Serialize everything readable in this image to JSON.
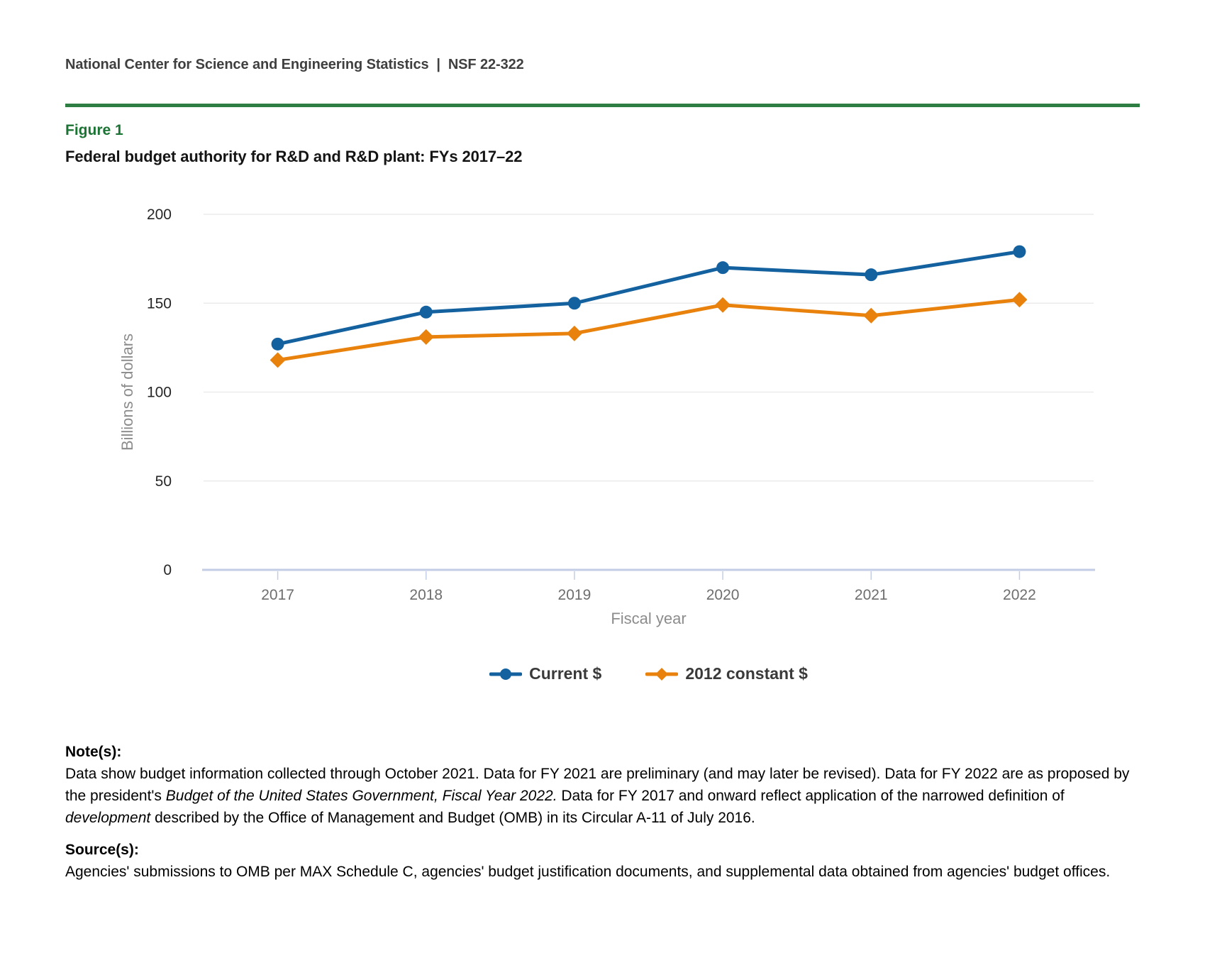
{
  "header": {
    "text": "National Center for Science and Engineering Statistics  |  NSF 22-322"
  },
  "figure": {
    "label": "Figure 1",
    "title": "Federal budget authority for R&D and R&D plant: FYs 2017–22"
  },
  "chart_data": {
    "type": "line",
    "title": "Federal budget authority for R&D and R&D plant: FYs 2017–22",
    "xlabel": "Fiscal year",
    "ylabel": "Billions of dollars",
    "categories": [
      "2017",
      "2018",
      "2019",
      "2020",
      "2021",
      "2022"
    ],
    "ylim": [
      0,
      200
    ],
    "yticks": [
      0,
      50,
      100,
      150,
      200
    ],
    "grid": true,
    "legend_position": "bottom",
    "series": [
      {
        "name": "Current $",
        "marker": "circle",
        "color": "#14619f",
        "values": [
          127,
          145,
          150,
          170,
          166,
          179
        ]
      },
      {
        "name": "2012 constant $",
        "marker": "diamond",
        "color": "#e8820d",
        "values": [
          118,
          131,
          133,
          149,
          143,
          152
        ]
      }
    ]
  },
  "notes": {
    "heading": "Note(s):",
    "segments": [
      {
        "text": "Data show budget information collected through October 2021. Data for FY 2021 are preliminary (and may later be revised). Data for FY 2022 are as proposed by the president's ",
        "italic": false
      },
      {
        "text": "Budget of the United States Government, Fiscal Year 2022.",
        "italic": true
      },
      {
        "text": " Data for FY 2017 and onward reflect application of the narrowed definition of ",
        "italic": false
      },
      {
        "text": "development",
        "italic": true
      },
      {
        "text": " described by the Office of Management and Budget (OMB) in its Circular A-11 of July 2016.",
        "italic": false
      }
    ]
  },
  "sources": {
    "heading": "Source(s):",
    "text": "Agencies' submissions to OMB per MAX Schedule C, agencies' budget justification documents, and supplemental data obtained from agencies' budget offices."
  },
  "colors": {
    "accent_green": "#2e7d43",
    "figure_label_green": "#1b7434",
    "current_blue": "#14619f",
    "constant_orange": "#e8820d",
    "axis_line": "#c3cee6",
    "gridline": "#ebebeb",
    "ytick_text": "#262626",
    "xtick_text": "#6e6e6e",
    "axis_title_text": "#8c8c8c"
  }
}
